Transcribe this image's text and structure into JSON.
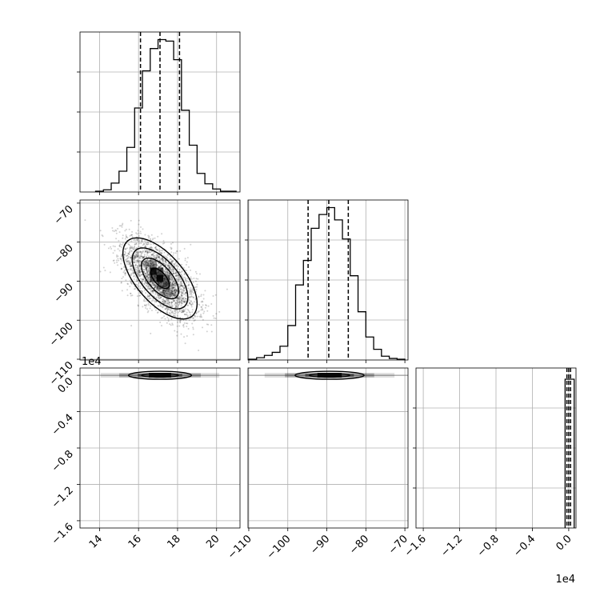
{
  "chart_data": {
    "type": "corner",
    "parameters": [
      {
        "axis_range": [
          13,
          21.2
        ],
        "ticks": [
          14,
          16,
          18,
          20
        ],
        "tick_labels": [
          "14",
          "16",
          "18",
          "20"
        ],
        "quantiles": [
          16.1,
          17.1,
          18.1
        ]
      },
      {
        "axis_range": [
          -110.2,
          -69.2
        ],
        "ticks": [
          -110,
          -100,
          -90,
          -80,
          -70
        ],
        "tick_labels": [
          "−110",
          "−100",
          "−90",
          "−80",
          "−70"
        ],
        "quantiles": [
          -94.8,
          -89.5,
          -84.5
        ]
      },
      {
        "axis_range": [
          -1.68,
          0.08
        ],
        "ticks": [
          -1.6,
          -1.2,
          -0.8,
          -0.4,
          0.0
        ],
        "tick_labels": [
          "−1.6",
          "−1.2",
          "−0.8",
          "−0.4",
          "0.0"
        ],
        "offset": "1e4",
        "quantiles": [
          -0.02,
          0.0,
          0.02
        ]
      }
    ],
    "histograms": [
      {
        "param": 0,
        "bin_edges": [
          13.8,
          14.2,
          14.6,
          15.0,
          15.4,
          15.8,
          16.2,
          16.6,
          17.0,
          17.4,
          17.8,
          18.2,
          18.6,
          19.0,
          19.4,
          19.8,
          20.2,
          20.6,
          21.0
        ],
        "counts": [
          1,
          3,
          12,
          28,
          60,
          113,
          163,
          193,
          205,
          203,
          178,
          110,
          63,
          25,
          11,
          4,
          1,
          1
        ]
      },
      {
        "param": 1,
        "bin_edges": [
          -110,
          -108,
          -106,
          -104,
          -102,
          -100,
          -98,
          -96,
          -94,
          -92,
          -90,
          -88,
          -86,
          -84,
          -82,
          -80,
          -78,
          -76,
          -74,
          -72,
          -70
        ],
        "counts": [
          1,
          3,
          6,
          10,
          18,
          45,
          98,
          130,
          172,
          190,
          199,
          183,
          158,
          110,
          63,
          30,
          14,
          5,
          2,
          1
        ]
      },
      {
        "param": 2,
        "bin_edges": [
          -0.04,
          0.0,
          0.06
        ],
        "counts": [
          1,
          1
        ]
      }
    ],
    "panels_2d": [
      {
        "x_param": 0,
        "y_param": 1,
        "center": [
          17.1,
          -89.3
        ],
        "sd": [
          0.95,
          5.2
        ],
        "corr": -0.62,
        "contour_levels_sigma": [
          0.5,
          1.0,
          1.5,
          2.0
        ]
      },
      {
        "x_param": 0,
        "y_param": 2,
        "center": [
          17.1,
          0.0
        ],
        "sd": [
          0.95,
          0.01
        ]
      },
      {
        "x_param": 1,
        "y_param": 2,
        "center": [
          -89.3,
          0.0
        ],
        "sd": [
          5.2,
          0.01
        ]
      }
    ],
    "grid": true
  }
}
